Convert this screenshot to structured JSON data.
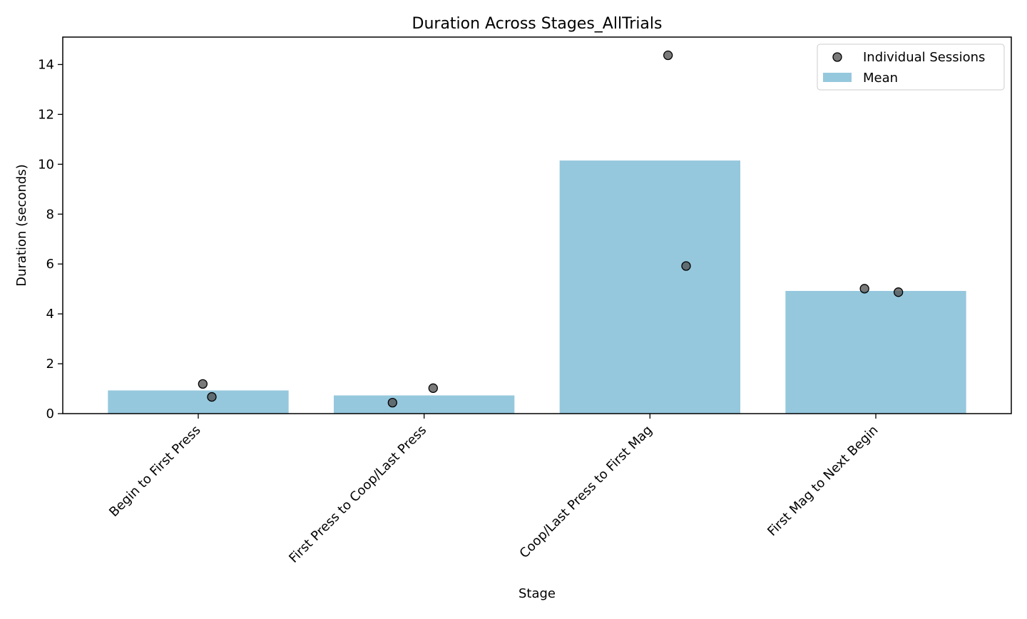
{
  "chart_data": {
    "type": "bar",
    "title": "Duration Across Stages_AllTrials",
    "xlabel": "Stage",
    "ylabel": "Duration (seconds)",
    "categories": [
      "Begin to First Press",
      "First Press to Coop/Last Press",
      "Coop/Last Press to First Mag",
      "First Mag to Next Begin"
    ],
    "series": [
      {
        "name": "Mean",
        "type": "bar",
        "color": "#95c8dd",
        "values": [
          0.93,
          0.73,
          10.15,
          4.92
        ]
      },
      {
        "name": "Individual Sessions",
        "type": "scatter",
        "color": "#4d4d4d",
        "points": [
          {
            "category": 0,
            "offset": 0.02,
            "y": 1.19
          },
          {
            "category": 0,
            "offset": 0.06,
            "y": 0.67
          },
          {
            "category": 1,
            "offset": -0.14,
            "y": 0.44
          },
          {
            "category": 1,
            "offset": 0.04,
            "y": 1.02
          },
          {
            "category": 2,
            "offset": 0.08,
            "y": 14.37
          },
          {
            "category": 2,
            "offset": 0.16,
            "y": 5.92
          },
          {
            "category": 3,
            "offset": -0.05,
            "y": 5.01
          },
          {
            "category": 3,
            "offset": 0.1,
            "y": 4.87
          }
        ]
      }
    ],
    "ylim": [
      0,
      15.1
    ],
    "yticks": [
      "0",
      "2",
      "4",
      "6",
      "8",
      "10",
      "12",
      "14"
    ],
    "grid": false,
    "legend": {
      "placement": "top-right",
      "entries": [
        "Individual Sessions",
        "Mean"
      ]
    }
  }
}
